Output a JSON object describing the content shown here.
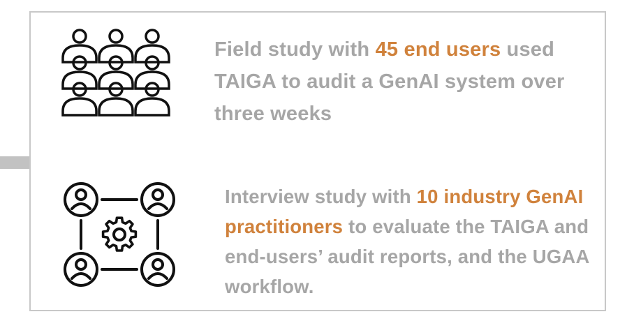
{
  "study1": {
    "icon": "people-group-icon",
    "text_before": "Field study with ",
    "highlight": "45 end users",
    "text_after": " used TAIGA to audit a GenAI system over three weeks"
  },
  "study2": {
    "icon": "network-gear-icon",
    "text_before": "Interview study with ",
    "highlight": "10 industry GenAI practitioners",
    "text_after": " to evaluate the TAIGA and end-users’ audit reports, and the UGAA workflow."
  },
  "colors": {
    "text": "#a6a6a6",
    "highlight": "#d0823c",
    "border": "#c8c8c8"
  }
}
